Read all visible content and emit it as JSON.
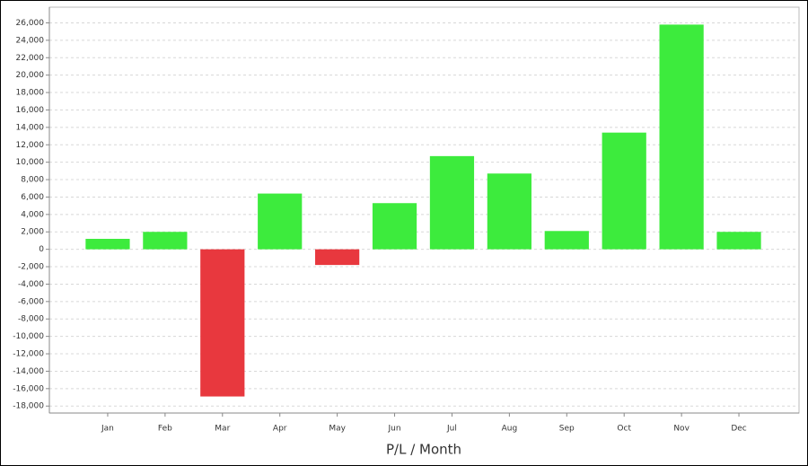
{
  "chart_data": {
    "type": "bar",
    "x_label": "P/L / Month",
    "categories": [
      "Jan",
      "Feb",
      "Mar",
      "Apr",
      "May",
      "Jun",
      "Jul",
      "Aug",
      "Sep",
      "Oct",
      "Nov",
      "Dec"
    ],
    "values": [
      1200,
      2000,
      -16900,
      6400,
      -1800,
      5300,
      10700,
      8700,
      2100,
      13400,
      25800,
      2000
    ],
    "positive_color": "#3deb3d",
    "negative_color": "#e8383e",
    "ylim": [
      -18800,
      27800
    ],
    "yticks": [
      {
        "value": -18000,
        "label": "-18,000"
      },
      {
        "value": -16000,
        "label": "-16,000"
      },
      {
        "value": -14000,
        "label": "-14,000"
      },
      {
        "value": -12000,
        "label": "-12,000"
      },
      {
        "value": -10000,
        "label": "-10,000"
      },
      {
        "value": -8000,
        "label": "-8,000"
      },
      {
        "value": -6000,
        "label": "-6,000"
      },
      {
        "value": -4000,
        "label": "-4,000"
      },
      {
        "value": -2000,
        "label": "-2,000"
      },
      0,
      {
        "value": 2000,
        "label": "2,000"
      },
      {
        "value": 4000,
        "label": "4,000"
      },
      {
        "value": 6000,
        "label": "6,000"
      },
      {
        "value": 8000,
        "label": "8,000"
      },
      {
        "value": 10000,
        "label": "10,000"
      },
      {
        "value": 12000,
        "label": "12,000"
      },
      {
        "value": 14000,
        "label": "14,000"
      },
      {
        "value": 16000,
        "label": "16,000"
      },
      {
        "value": 18000,
        "label": "18,000"
      },
      {
        "value": 20000,
        "label": "20,000"
      },
      {
        "value": 22000,
        "label": "22,000"
      },
      {
        "value": 24000,
        "label": "24,000"
      },
      {
        "value": 26000,
        "label": "26,000"
      }
    ],
    "grid": true
  }
}
